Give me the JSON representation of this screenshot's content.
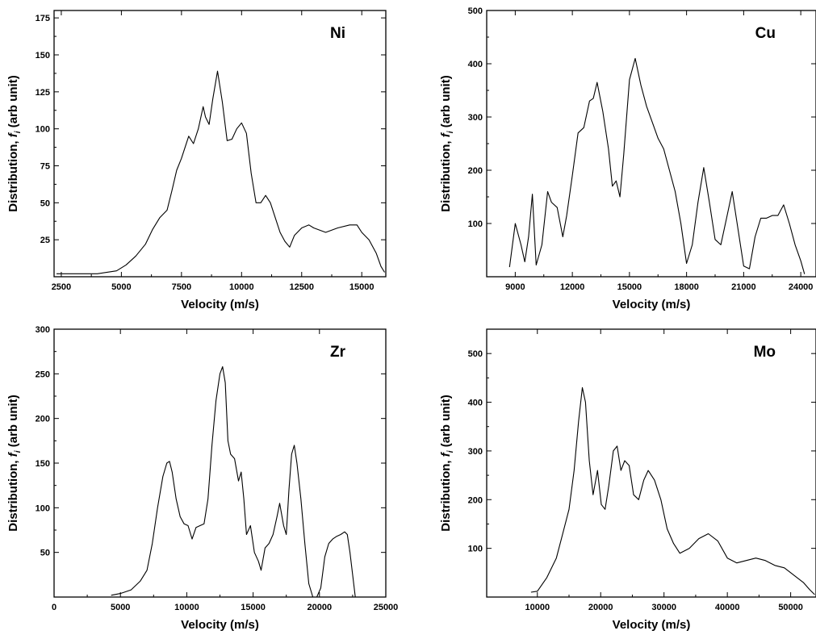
{
  "chart_data": [
    {
      "type": "line",
      "panel_label": "Ni",
      "xlabel": "Velocity (m/s)",
      "ylabel": "Distribution, f_i (arb unit)",
      "ylabel_parts": [
        "Distribution, ",
        "f",
        "i",
        " (arb unit)"
      ],
      "xlim": [
        2200,
        16000
      ],
      "ylim": [
        0,
        180
      ],
      "xticks": [
        2500,
        5000,
        7500,
        10000,
        12500,
        15000
      ],
      "xtick_labels": [
        "2500",
        "5000",
        "7500",
        "10000",
        "12500",
        "15000"
      ],
      "yticks": [
        25,
        50,
        75,
        100,
        125,
        150,
        175
      ],
      "ytick_labels": [
        "25",
        "50",
        "75",
        "100",
        "125",
        "150",
        "175"
      ],
      "series": [
        {
          "x": [
            2300,
            3000,
            4000,
            4800,
            5200,
            5600,
            6000,
            6300,
            6600,
            6900,
            7100,
            7300,
            7500,
            7800,
            8000,
            8200,
            8400,
            8500,
            8650,
            8800,
            9000,
            9200,
            9400,
            9600,
            9800,
            10000,
            10200,
            10400,
            10600,
            10800,
            11000,
            11200,
            11400,
            11600,
            11800,
            12000,
            12200,
            12500,
            12800,
            13000,
            13500,
            14000,
            14500,
            14800,
            15000,
            15300,
            15600,
            15800,
            15950
          ],
          "y": [
            2,
            2,
            2,
            4,
            8,
            14,
            22,
            32,
            40,
            45,
            58,
            72,
            80,
            95,
            90,
            100,
            115,
            108,
            103,
            120,
            139,
            118,
            92,
            93,
            100,
            104,
            97,
            70,
            50,
            50,
            55,
            50,
            40,
            30,
            24,
            20,
            28,
            33,
            35,
            33,
            30,
            33,
            35,
            35,
            30,
            25,
            16,
            7,
            3
          ]
        }
      ]
    },
    {
      "type": "line",
      "panel_label": "Cu",
      "xlabel": "Velocity (m/s)",
      "ylabel": "Distribution, f_i (arb unit)",
      "ylabel_parts": [
        "Distribution, ",
        "f",
        "i",
        " (arb unit)"
      ],
      "xlim": [
        7500,
        24800
      ],
      "ylim": [
        0,
        500
      ],
      "xticks": [
        9000,
        12000,
        15000,
        18000,
        21000,
        24000
      ],
      "xtick_labels": [
        "9000",
        "12000",
        "15000",
        "18000",
        "21000",
        "24000"
      ],
      "yticks": [
        100,
        200,
        300,
        400,
        500
      ],
      "ytick_labels": [
        "100",
        "200",
        "300",
        "400",
        "500"
      ],
      "series": [
        {
          "x": [
            8700,
            9000,
            9300,
            9500,
            9700,
            9900,
            10100,
            10400,
            10700,
            10900,
            11200,
            11500,
            11700,
            12000,
            12300,
            12600,
            12900,
            13100,
            13300,
            13600,
            13900,
            14100,
            14300,
            14500,
            14700,
            15000,
            15300,
            15600,
            15900,
            16200,
            16500,
            16800,
            17100,
            17400,
            17700,
            18000,
            18300,
            18600,
            18900,
            19200,
            19500,
            19800,
            20100,
            20400,
            20700,
            21000,
            21300,
            21600,
            21900,
            22200,
            22500,
            22800,
            23100,
            23400,
            23700,
            24000,
            24200
          ],
          "y": [
            18,
            100,
            60,
            28,
            75,
            155,
            22,
            60,
            160,
            140,
            130,
            75,
            115,
            190,
            270,
            280,
            330,
            335,
            365,
            310,
            240,
            170,
            180,
            150,
            230,
            370,
            410,
            360,
            320,
            290,
            260,
            240,
            200,
            160,
            100,
            25,
            60,
            140,
            205,
            140,
            70,
            60,
            110,
            160,
            90,
            20,
            15,
            75,
            110,
            110,
            115,
            115,
            135,
            100,
            60,
            30,
            5
          ]
        }
      ]
    },
    {
      "type": "line",
      "panel_label": "Zr",
      "xlabel": "Velocity (m/s)",
      "ylabel": "Distribution, f_i (arb unit)",
      "ylabel_parts": [
        "Distribution, ",
        "f",
        "i",
        " (arb unit)"
      ],
      "xlim": [
        0,
        25000
      ],
      "ylim": [
        0,
        300
      ],
      "xticks": [
        0,
        5000,
        10000,
        15000,
        20000,
        25000
      ],
      "xtick_labels": [
        "0",
        "5000",
        "10000",
        "15000",
        "20000",
        "25000"
      ],
      "yticks": [
        50,
        100,
        150,
        200,
        250,
        300
      ],
      "ytick_labels": [
        "50",
        "100",
        "150",
        "200",
        "250",
        "300"
      ],
      "series": [
        {
          "x": [
            4300,
            5000,
            5800,
            6500,
            7000,
            7400,
            7800,
            8200,
            8500,
            8700,
            8900,
            9200,
            9500,
            9800,
            10100,
            10400,
            10700,
            11000,
            11300,
            11600,
            11900,
            12200,
            12500,
            12700,
            12900,
            13100,
            13300,
            13600,
            13900,
            14100,
            14300,
            14500,
            14800,
            15100,
            15400,
            15600,
            15900,
            16200,
            16500,
            16800,
            17000,
            17300,
            17500,
            17700,
            17900,
            18100,
            18300,
            18600,
            18900,
            19200,
            19500,
            19800,
            20100,
            20400,
            20700,
            21000,
            21300,
            21600,
            21900,
            22100,
            22300,
            22500,
            22700
          ],
          "y": [
            2,
            4,
            8,
            18,
            30,
            60,
            100,
            135,
            150,
            152,
            140,
            110,
            90,
            82,
            80,
            65,
            78,
            80,
            82,
            110,
            170,
            220,
            250,
            258,
            240,
            175,
            160,
            155,
            130,
            140,
            110,
            70,
            80,
            50,
            40,
            30,
            55,
            60,
            70,
            90,
            105,
            80,
            70,
            120,
            160,
            170,
            150,
            110,
            60,
            15,
            0,
            0,
            10,
            45,
            60,
            65,
            68,
            70,
            73,
            70,
            50,
            25,
            0
          ]
        }
      ]
    },
    {
      "type": "line",
      "panel_label": "Mo",
      "xlabel": "Velocity (m/s)",
      "ylabel": "Distribution, f_i (arb unit)",
      "ylabel_parts": [
        "Distribution, ",
        "f",
        "i",
        " (arb unit)"
      ],
      "xlim": [
        2000,
        54000
      ],
      "ylim": [
        0,
        550
      ],
      "xticks": [
        10000,
        20000,
        30000,
        40000,
        50000
      ],
      "xtick_labels": [
        "10000",
        "20000",
        "30000",
        "40000",
        "50000"
      ],
      "yticks": [
        100,
        200,
        300,
        400,
        500
      ],
      "ytick_labels": [
        "100",
        "200",
        "300",
        "400",
        "500"
      ],
      "series": [
        {
          "x": [
            9000,
            10000,
            11500,
            13000,
            14000,
            15000,
            15800,
            16500,
            17100,
            17600,
            18200,
            18800,
            19500,
            20100,
            20700,
            21300,
            22000,
            22600,
            23200,
            23800,
            24500,
            25200,
            26000,
            26800,
            27500,
            28500,
            29500,
            30500,
            31500,
            32500,
            34000,
            35500,
            37000,
            38500,
            40000,
            41500,
            43000,
            44500,
            46000,
            47500,
            49000,
            50000,
            51000,
            52000,
            53000,
            53800
          ],
          "y": [
            10,
            12,
            40,
            80,
            130,
            180,
            260,
            360,
            430,
            400,
            280,
            210,
            260,
            190,
            180,
            230,
            300,
            310,
            260,
            280,
            270,
            210,
            200,
            240,
            260,
            240,
            200,
            140,
            110,
            90,
            100,
            120,
            130,
            115,
            80,
            70,
            75,
            80,
            75,
            65,
            60,
            50,
            40,
            30,
            15,
            5
          ]
        }
      ]
    }
  ]
}
